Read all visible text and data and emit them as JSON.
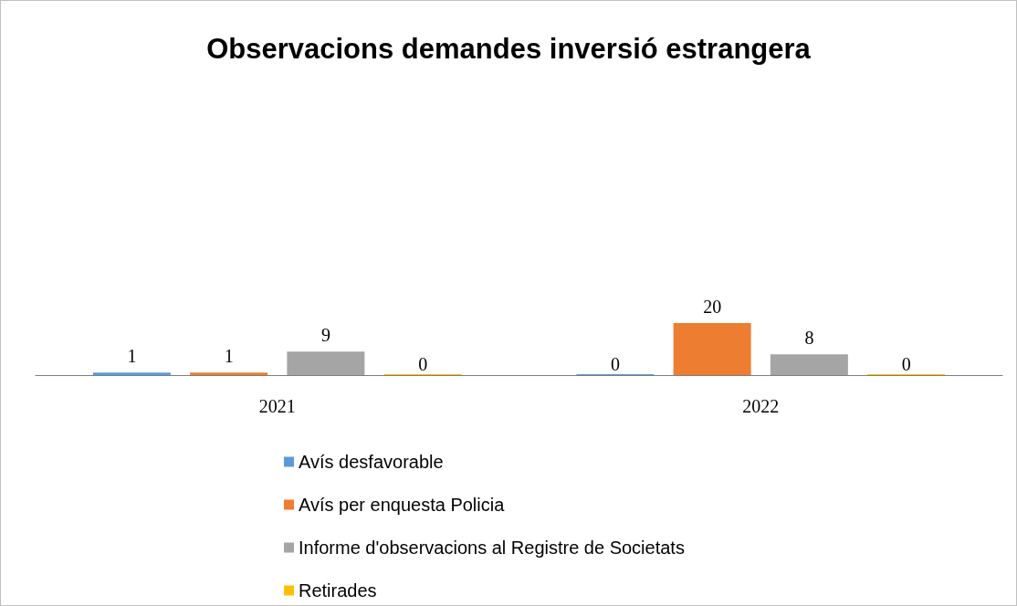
{
  "chart_data": {
    "type": "bar",
    "title": "Observacions demandes inversió estrangera",
    "categories": [
      "2021",
      "2022"
    ],
    "series": [
      {
        "name": "Avís desfavorable",
        "color": "#5b9bd5",
        "values": [
          1,
          0
        ]
      },
      {
        "name": "Avís per enquesta Policia",
        "color": "#ed7d31",
        "values": [
          1,
          20
        ]
      },
      {
        "name": "Informe d'observacions al Registre de Societats",
        "color": "#a5a5a5",
        "values": [
          9,
          8
        ]
      },
      {
        "name": "Retirades",
        "color": "#ffc000",
        "values": [
          0,
          0
        ]
      }
    ],
    "data_labels": true,
    "legend": "bottom"
  }
}
